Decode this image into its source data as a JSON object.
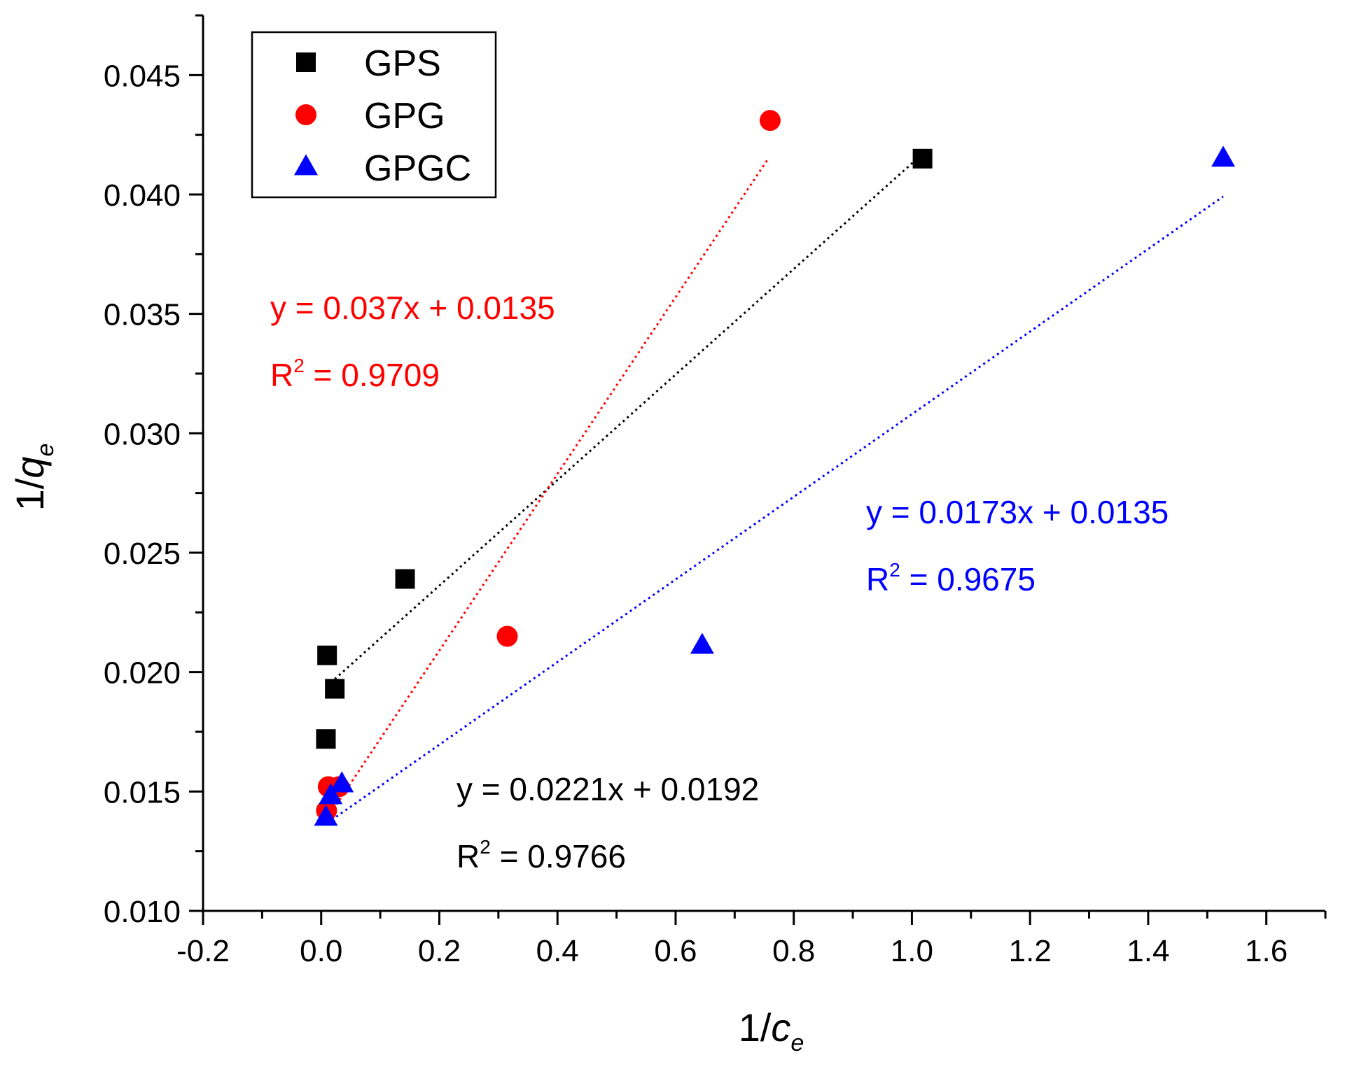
{
  "chart_data": {
    "type": "scatter",
    "title": "",
    "xlabel": {
      "main": "1/",
      "var": "c",
      "sub": "e"
    },
    "ylabel": {
      "main": "1/",
      "var": "q",
      "sub": "e"
    },
    "xlim": [
      -0.2,
      1.7
    ],
    "ylim": [
      0.01,
      0.0475
    ],
    "x_ticks": [
      -0.2,
      0.0,
      0.2,
      0.4,
      0.6,
      0.8,
      1.0,
      1.2,
      1.4,
      1.6
    ],
    "x_tick_labels": [
      "-0.2",
      "0.0",
      "0.2",
      "0.4",
      "0.6",
      "0.8",
      "1.0",
      "1.2",
      "1.4",
      "1.6"
    ],
    "y_ticks": [
      0.01,
      0.015,
      0.02,
      0.025,
      0.03,
      0.035,
      0.04,
      0.045
    ],
    "y_tick_labels": [
      "0.010",
      "0.015",
      "0.020",
      "0.025",
      "0.030",
      "0.035",
      "0.040",
      "0.045"
    ],
    "grid": false,
    "legend_position": "top-left",
    "series": [
      {
        "name": "GPS",
        "color": "#000000",
        "marker": "square",
        "points": [
          [
            0.01,
            0.0207
          ],
          [
            0.023,
            0.0193
          ],
          [
            0.008,
            0.0172
          ],
          [
            0.142,
            0.0239
          ],
          [
            1.018,
            0.0415
          ]
        ],
        "fit": {
          "slope": 0.0221,
          "intercept": 0.0192,
          "x_range": [
            0.023,
            1.018
          ]
        },
        "equation": "y = 0.0221x + 0.0192",
        "r2_label": "R",
        "r2_value": " = 0.9766"
      },
      {
        "name": "GPG",
        "color": "#ff0000",
        "marker": "circle",
        "points": [
          [
            0.009,
            0.0142
          ],
          [
            0.012,
            0.0152
          ],
          [
            0.03,
            0.0152
          ],
          [
            0.315,
            0.0215
          ],
          [
            0.76,
            0.0431
          ]
        ],
        "fit": {
          "slope": 0.037,
          "intercept": 0.0135,
          "x_range": [
            0.01,
            0.757
          ]
        },
        "equation": "y = 0.037x + 0.0135",
        "r2_label": "R",
        "r2_value": " = 0.9709"
      },
      {
        "name": "GPGC",
        "color": "#0000ff",
        "marker": "triangle",
        "points": [
          [
            0.008,
            0.0139
          ],
          [
            0.016,
            0.0148
          ],
          [
            0.035,
            0.0153
          ],
          [
            0.645,
            0.0211
          ],
          [
            1.527,
            0.0415
          ]
        ],
        "fit": {
          "slope": 0.0173,
          "intercept": 0.0135,
          "x_range": [
            0.01,
            1.527
          ]
        },
        "equation": "y = 0.0173x + 0.0135",
        "r2_label": "R",
        "r2_value": " = 0.9675"
      }
    ]
  }
}
